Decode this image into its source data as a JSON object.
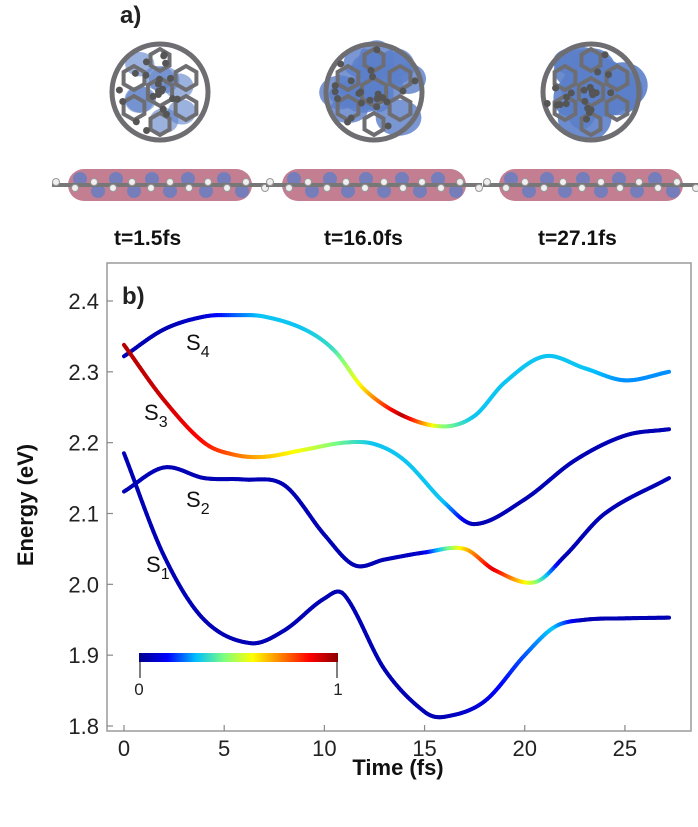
{
  "figure": {
    "panel_a_label": "a)",
    "panel_b_label": "b)",
    "snapshots": [
      {
        "label": "t=1.5fs"
      },
      {
        "label": "t=16.0fs"
      },
      {
        "label": "t=27.1fs"
      }
    ],
    "colors": {
      "carbon": "#6e6e72",
      "lobe_blue": "#5b7fc9",
      "lobe_pink": "#b8677e",
      "background": "#ffffff"
    }
  },
  "chart_data": {
    "type": "line",
    "title": "",
    "xlabel": "Time (fs)",
    "ylabel": "Energy (eV)",
    "xlim": [
      -1,
      28
    ],
    "ylim": [
      1.8,
      2.45
    ],
    "xticks": [
      "0",
      "5",
      "10",
      "15",
      "20",
      "25"
    ],
    "yticks": [
      "1.8",
      "1.9",
      "2.0",
      "2.1",
      "2.2",
      "2.3",
      "2.4"
    ],
    "series": [
      {
        "name": "S4",
        "label_sub": "4",
        "x": [
          0,
          2,
          4,
          5.5,
          7,
          9,
          10.5,
          12,
          14,
          16,
          17.5,
          19,
          21,
          23,
          25,
          27.2
        ],
        "y": [
          2.322,
          2.36,
          2.378,
          2.38,
          2.378,
          2.36,
          2.33,
          2.275,
          2.237,
          2.223,
          2.238,
          2.285,
          2.322,
          2.305,
          2.288,
          2.3
        ],
        "weight": [
          0.05,
          0.05,
          0.08,
          0.2,
          0.3,
          0.3,
          0.35,
          0.6,
          0.95,
          0.45,
          0.3,
          0.3,
          0.3,
          0.3,
          0.25,
          0.25
        ]
      },
      {
        "name": "S3",
        "label_sub": "3",
        "x": [
          0,
          2,
          4,
          5.5,
          7,
          9,
          11,
          12.5,
          14,
          16,
          17.5,
          20,
          22.5,
          25,
          27.2
        ],
        "y": [
          2.338,
          2.26,
          2.2,
          2.183,
          2.18,
          2.19,
          2.2,
          2.198,
          2.175,
          2.115,
          2.085,
          2.12,
          2.175,
          2.21,
          2.219
        ],
        "weight": [
          0.95,
          0.92,
          0.85,
          0.75,
          0.65,
          0.55,
          0.4,
          0.3,
          0.3,
          0.3,
          0.05,
          0.05,
          0.05,
          0.05,
          0.05
        ]
      },
      {
        "name": "S2",
        "label_sub": "2",
        "x": [
          0,
          2,
          4,
          6,
          8,
          10,
          11.5,
          13,
          15,
          17,
          18.5,
          20.5,
          22,
          24,
          27.2
        ],
        "y": [
          2.131,
          2.165,
          2.15,
          2.148,
          2.14,
          2.07,
          2.027,
          2.035,
          2.045,
          2.05,
          2.02,
          2.003,
          2.04,
          2.1,
          2.15
        ],
        "weight": [
          0.05,
          0.05,
          0.05,
          0.05,
          0.05,
          0.05,
          0.05,
          0.05,
          0.08,
          0.6,
          0.9,
          0.5,
          0.05,
          0.05,
          0.05
        ]
      },
      {
        "name": "S1",
        "label_sub": "1",
        "x": [
          0,
          2,
          4,
          6.3,
          8,
          10,
          11,
          13,
          15,
          16,
          18,
          20,
          21.5,
          23,
          25,
          27.2
        ],
        "y": [
          2.185,
          2.04,
          1.95,
          1.917,
          1.935,
          1.98,
          1.985,
          1.88,
          1.82,
          1.813,
          1.835,
          1.9,
          1.94,
          1.95,
          1.952,
          1.953
        ],
        "weight": [
          0.05,
          0.05,
          0.05,
          0.05,
          0.05,
          0.05,
          0.05,
          0.05,
          0.05,
          0.05,
          0.1,
          0.2,
          0.3,
          0.05,
          0.05,
          0.05
        ]
      }
    ],
    "colorbar": {
      "min_label": "0",
      "max_label": "1",
      "colors": [
        "#00008b",
        "#0000ff",
        "#00bfff",
        "#7fff7f",
        "#ffff00",
        "#ff7f00",
        "#ff0000",
        "#8b0000"
      ]
    },
    "grid": false,
    "legend": "none"
  }
}
